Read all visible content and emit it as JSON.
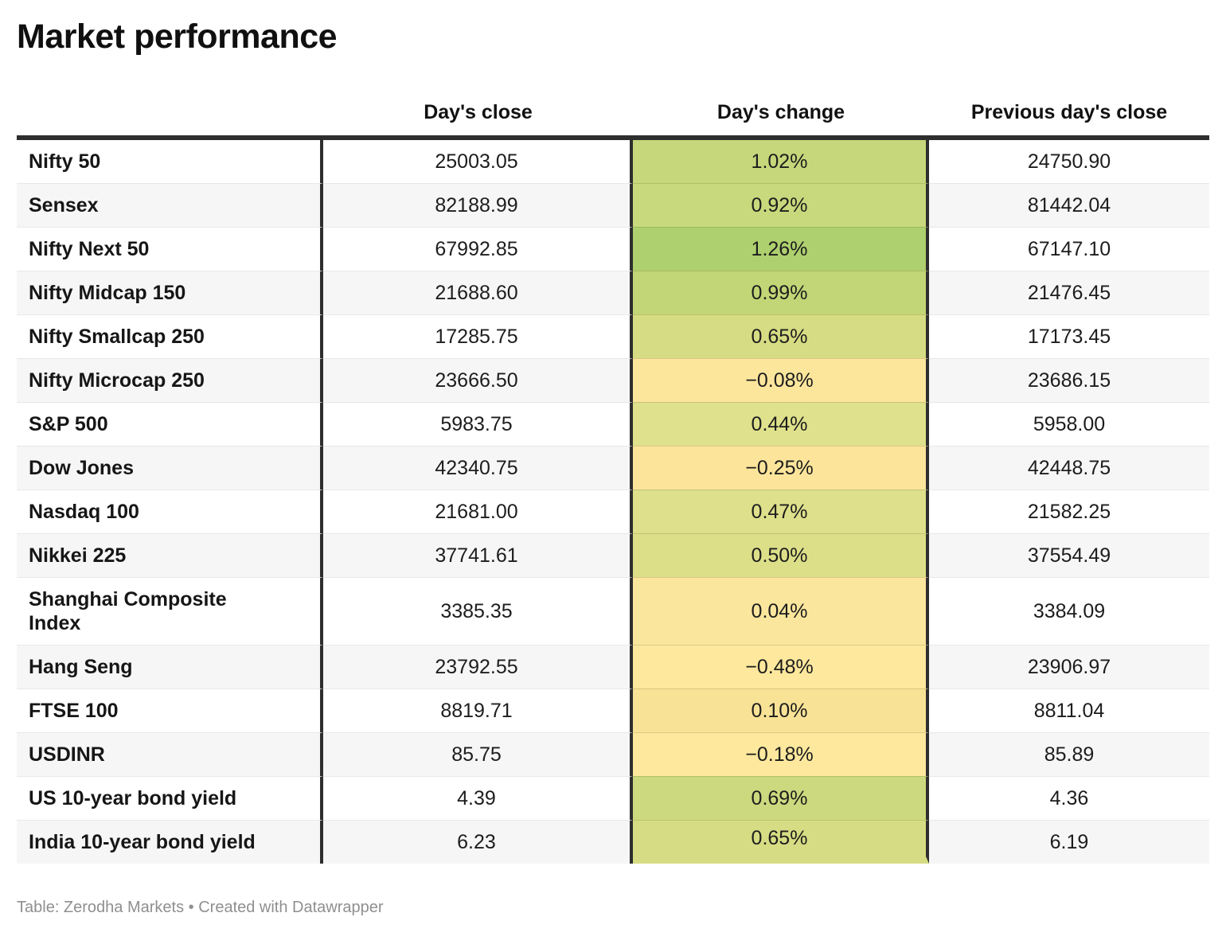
{
  "chart_data": {
    "type": "table",
    "title": "Market performance",
    "columns": [
      "Day's close",
      "Day's change",
      "Previous day's close"
    ],
    "rows": [
      {
        "name": "Nifty 50",
        "close": "25003.05",
        "change": "1.02%",
        "change_color": "#c6d77b",
        "prev": "24750.90"
      },
      {
        "name": "Sensex",
        "close": "82188.99",
        "change": "0.92%",
        "change_color": "#c8d87c",
        "prev": "81442.04"
      },
      {
        "name": "Nifty Next 50",
        "close": "67992.85",
        "change": "1.26%",
        "change_color": "#aed06e",
        "prev": "67147.10"
      },
      {
        "name": "Nifty Midcap 150",
        "close": "21688.60",
        "change": "0.99%",
        "change_color": "#c3d677",
        "prev": "21476.45"
      },
      {
        "name": "Nifty Smallcap 250",
        "close": "17285.75",
        "change": "0.65%",
        "change_color": "#d6dc83",
        "prev": "17173.45"
      },
      {
        "name": "Nifty Microcap 250",
        "close": "23666.50",
        "change": "−0.08%",
        "change_color": "#fce69c",
        "prev": "23686.15"
      },
      {
        "name": "S&P 500",
        "close": "5983.75",
        "change": "0.44%",
        "change_color": "#dfe18c",
        "prev": "5958.00"
      },
      {
        "name": "Dow Jones",
        "close": "42340.75",
        "change": "−0.25%",
        "change_color": "#fce59b",
        "prev": "42448.75"
      },
      {
        "name": "Nasdaq 100",
        "close": "21681.00",
        "change": "0.47%",
        "change_color": "#dee08b",
        "prev": "21582.25"
      },
      {
        "name": "Nikkei 225",
        "close": "37741.61",
        "change": "0.50%",
        "change_color": "#dcdf88",
        "prev": "37554.49"
      },
      {
        "name": "Shanghai Composite\nIndex",
        "close": "3385.35",
        "change": "0.04%",
        "change_color": "#fbe69d",
        "prev": "3384.09"
      },
      {
        "name": "Hang Seng",
        "close": "23792.55",
        "change": "−0.48%",
        "change_color": "#fde89d",
        "prev": "23906.97"
      },
      {
        "name": "FTSE 100",
        "close": "8819.71",
        "change": "0.10%",
        "change_color": "#f8e296",
        "prev": "8811.04"
      },
      {
        "name": "USDINR",
        "close": "85.75",
        "change": "−0.18%",
        "change_color": "#fde89d",
        "prev": "85.89"
      },
      {
        "name": "US 10-year bond yield",
        "close": "4.39",
        "change": "0.69%",
        "change_color": "#cdd97e",
        "prev": "4.36"
      },
      {
        "name": "India 10-year bond yield",
        "close": "6.23",
        "change": "0.65%",
        "change_color": "#d6dc83",
        "prev": "6.19"
      }
    ],
    "layout_hints": {
      "change_scale": "yellow (negative/low) to green (high)",
      "divider_color": "#2e2e2e",
      "zebra_color": "#f6f6f6"
    }
  },
  "footer": {
    "text": "Table: Zerodha Markets • Created with Datawrapper"
  }
}
